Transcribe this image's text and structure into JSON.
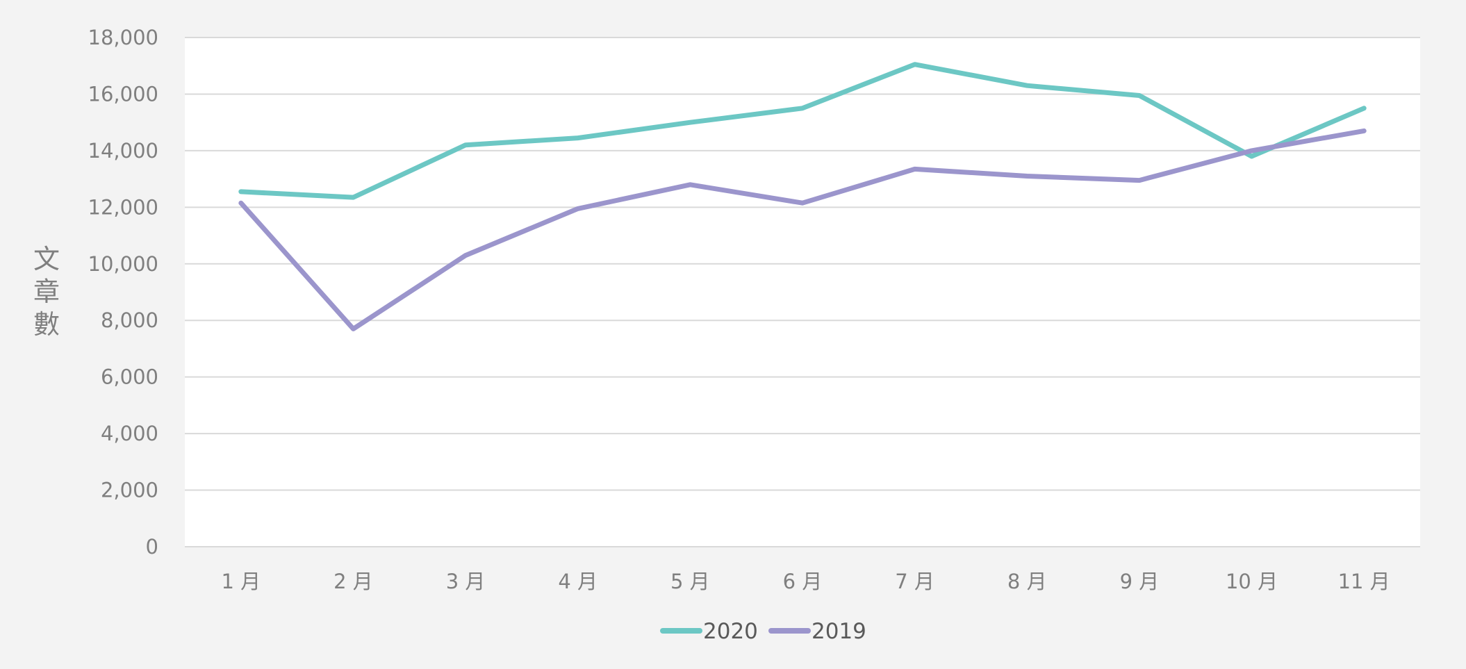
{
  "chart_data": {
    "type": "line",
    "title": "",
    "xlabel": "",
    "ylabel": "文章數",
    "categories": [
      "1 月",
      "2 月",
      "3 月",
      "4 月",
      "5 月",
      "6 月",
      "7 月",
      "8 月",
      "9 月",
      "10 月",
      "11 月"
    ],
    "ylim": [
      0,
      18000
    ],
    "yticks": [
      "0",
      "2,000",
      "4,000",
      "6,000",
      "8,000",
      "10,000",
      "12,000",
      "14,000",
      "16,000",
      "18,000"
    ],
    "grid": true,
    "legend_position": "bottom",
    "series": [
      {
        "name": "2020",
        "color": "#6cc7c4",
        "values": [
          12550,
          12350,
          14200,
          14450,
          15000,
          15500,
          17050,
          16300,
          15950,
          13800,
          15500
        ]
      },
      {
        "name": "2019",
        "color": "#9b95cc",
        "values": [
          12150,
          7700,
          10300,
          11950,
          12800,
          12150,
          13350,
          13100,
          12950,
          14000,
          14700
        ]
      }
    ]
  }
}
